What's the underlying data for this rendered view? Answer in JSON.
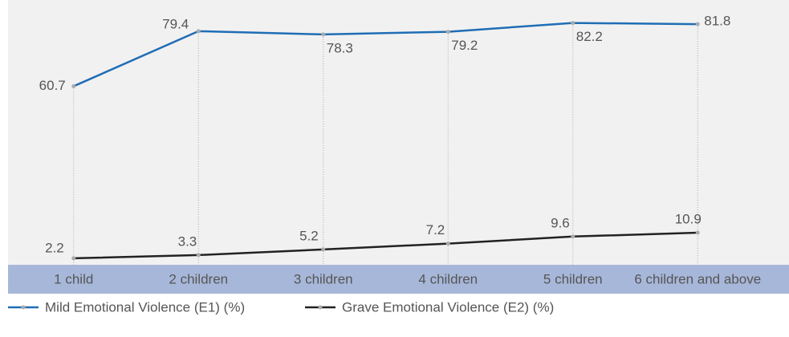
{
  "chart_data": {
    "type": "line",
    "categories": [
      "1 child",
      "2 children",
      "3 children",
      "4 children",
      "5 children",
      "6 children and above"
    ],
    "series": [
      {
        "name": "Mild Emotional Violence (E1) (%)",
        "color": "#1f6db5",
        "values": [
          60.7,
          79.4,
          78.3,
          79.2,
          82.2,
          81.8
        ]
      },
      {
        "name": "Grave Emotional Violence (E2) (%)",
        "color": "#222222",
        "values": [
          2.2,
          3.3,
          5.2,
          7.2,
          9.6,
          10.9
        ]
      }
    ],
    "ylim": [
      0,
      90
    ]
  }
}
